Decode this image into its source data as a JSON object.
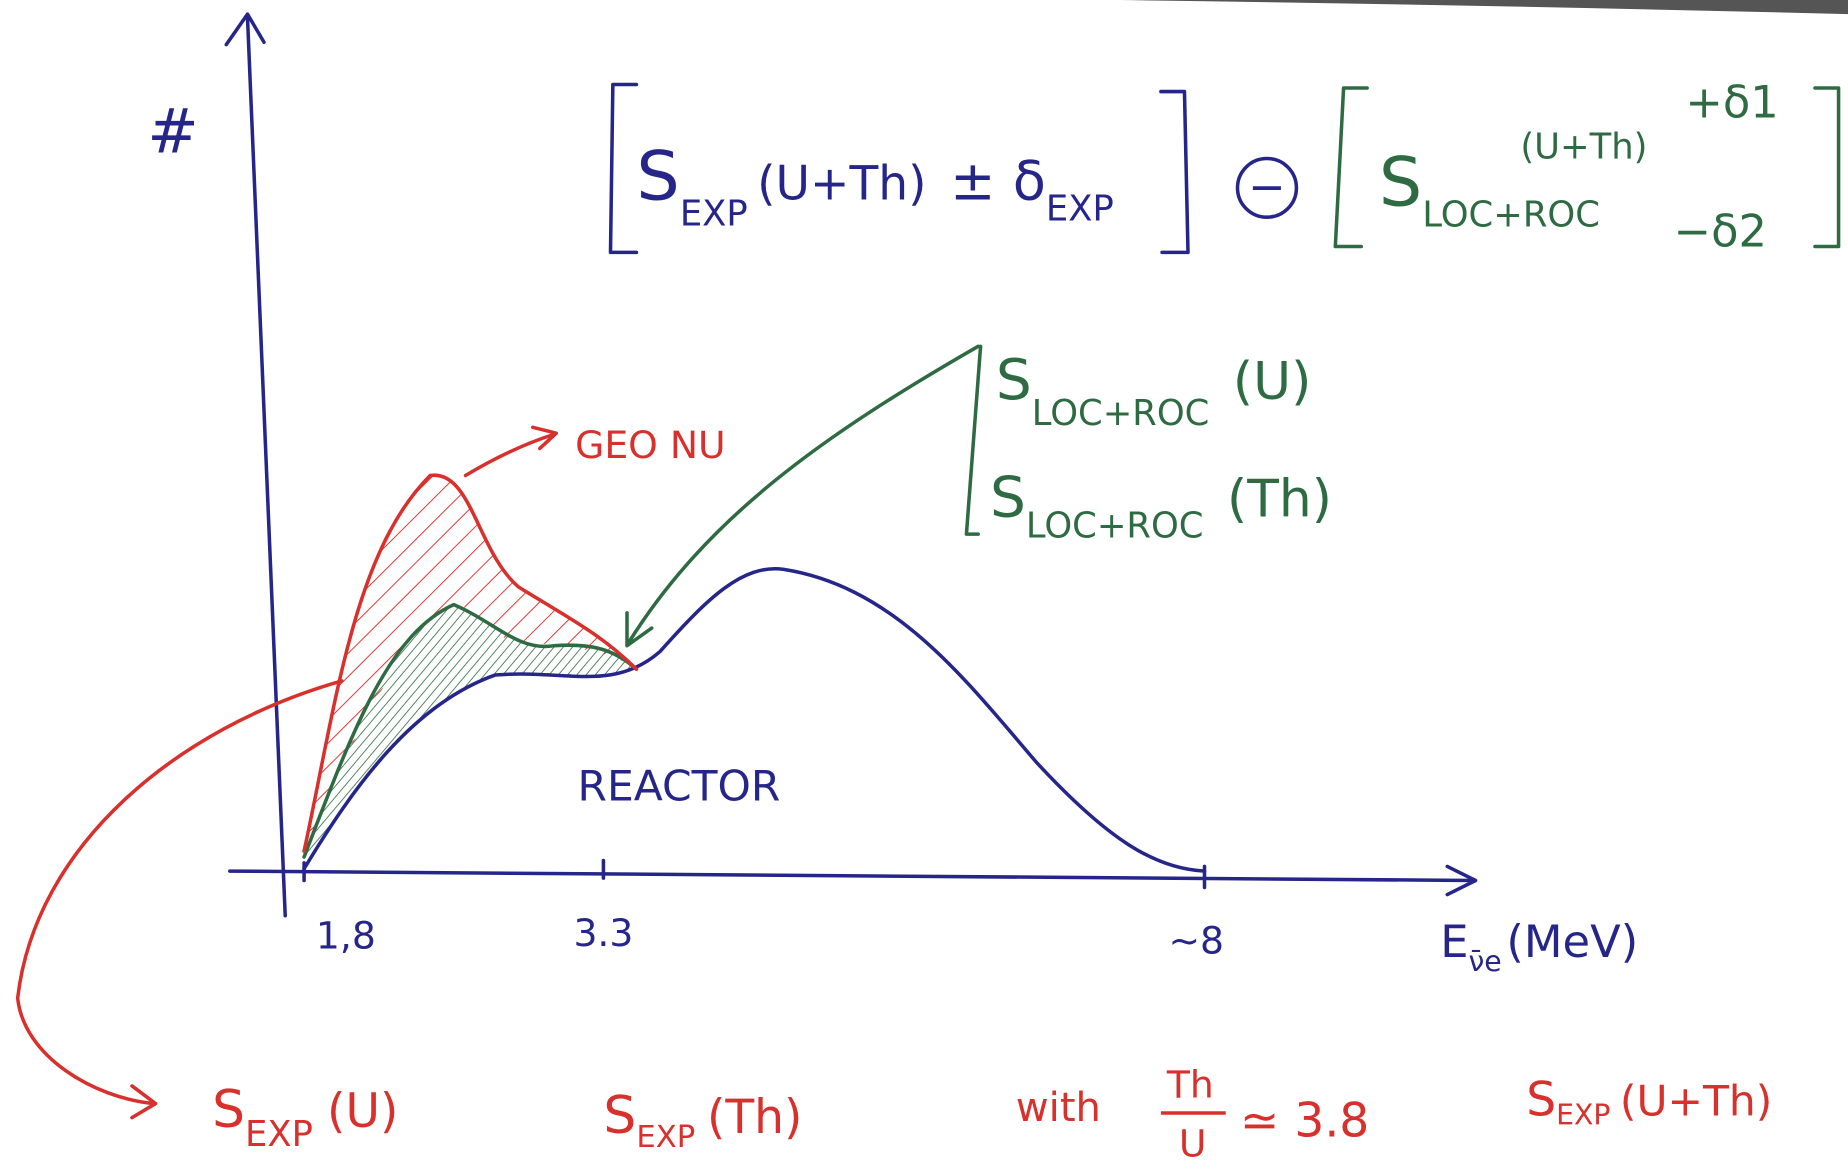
{
  "y_axis_label": "#",
  "formula": {
    "left": {
      "symbol": "S",
      "subscript": "EXP",
      "argument": "(U+Th)",
      "uncertainty": "± δ",
      "uncertainty_subscript": "EXP"
    },
    "operator": "−",
    "right": {
      "symbol": "S",
      "subscript": "LOC+ROC",
      "superscript": "(U+Th)",
      "upper": "+δ1",
      "lower": "−δ2"
    }
  },
  "geonu_label": "GEO NU",
  "local_labels": [
    {
      "symbol": "S",
      "subscript": "LOC+ROC",
      "argument": "(U)"
    },
    {
      "symbol": "S",
      "subscript": "LOC+ROC",
      "argument": "(Th)"
    }
  ],
  "reactor_label": "REACTOR",
  "x_ticks": [
    "1,8",
    "3.3",
    "~8"
  ],
  "x_axis_label": {
    "symbol": "E",
    "subscript": "ν̄e",
    "unit": "(MeV)"
  },
  "bottom": [
    {
      "symbol": "S",
      "subscript": "EXP",
      "argument": "(U)"
    },
    {
      "symbol": "S",
      "subscript": "EXP",
      "argument": "(Th)"
    },
    {
      "prefix": "with",
      "numerator": "Th",
      "denominator": "U",
      "relation": "≃ 3.8"
    },
    {
      "symbol": "S",
      "subscript": "EXP",
      "argument": "(U+Th)"
    }
  ]
}
